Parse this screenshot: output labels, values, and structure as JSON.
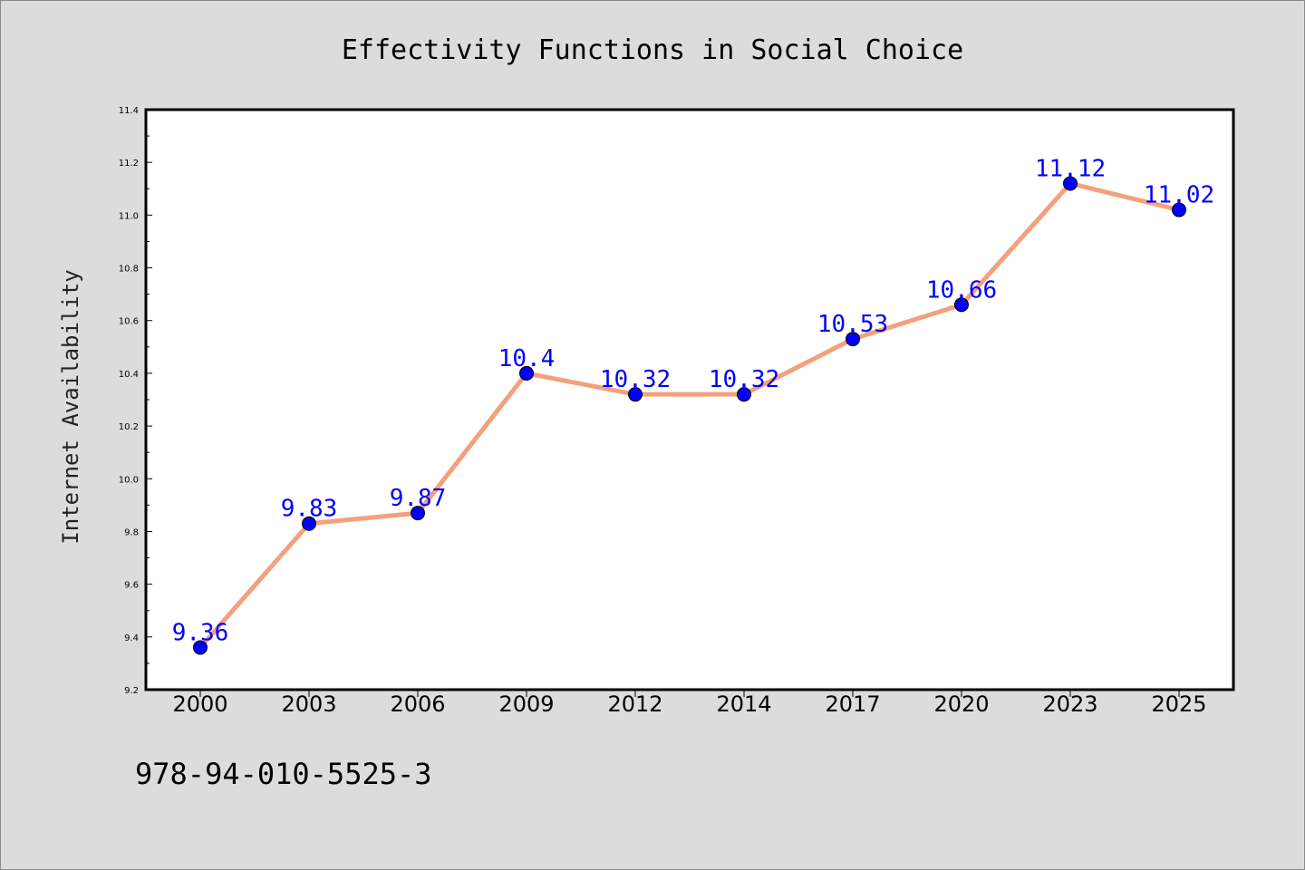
{
  "chart_data": {
    "type": "line",
    "title": "Effectivity Functions in Social Choice",
    "xlabel": "",
    "ylabel": "Internet Availability",
    "categories": [
      "2000",
      "2003",
      "2006",
      "2009",
      "2012",
      "2014",
      "2017",
      "2020",
      "2023",
      "2025"
    ],
    "values": [
      9.36,
      9.83,
      9.87,
      10.4,
      10.32,
      10.32,
      10.53,
      10.66,
      11.12,
      11.02
    ],
    "value_labels": [
      "9.36",
      "9.83",
      "9.87",
      "10.4",
      "10.32",
      "10.32",
      "10.53",
      "10.66",
      "11.12",
      "11.02"
    ],
    "ylim": [
      9.2,
      11.4
    ],
    "yticks": [
      "9.2",
      "9.4",
      "9.6",
      "9.8",
      "10.0",
      "10.2",
      "10.4",
      "10.6",
      "10.8",
      "11.0",
      "11.2",
      "11.4"
    ],
    "grid": false,
    "line_color": "#f4a07c",
    "marker_color": "#0000ff",
    "label_color": "#0000ff",
    "plot_background": "#ffffff",
    "page_background": "#dcdcdc"
  },
  "footer": {
    "isbn": "978-94-010-5525-3"
  }
}
